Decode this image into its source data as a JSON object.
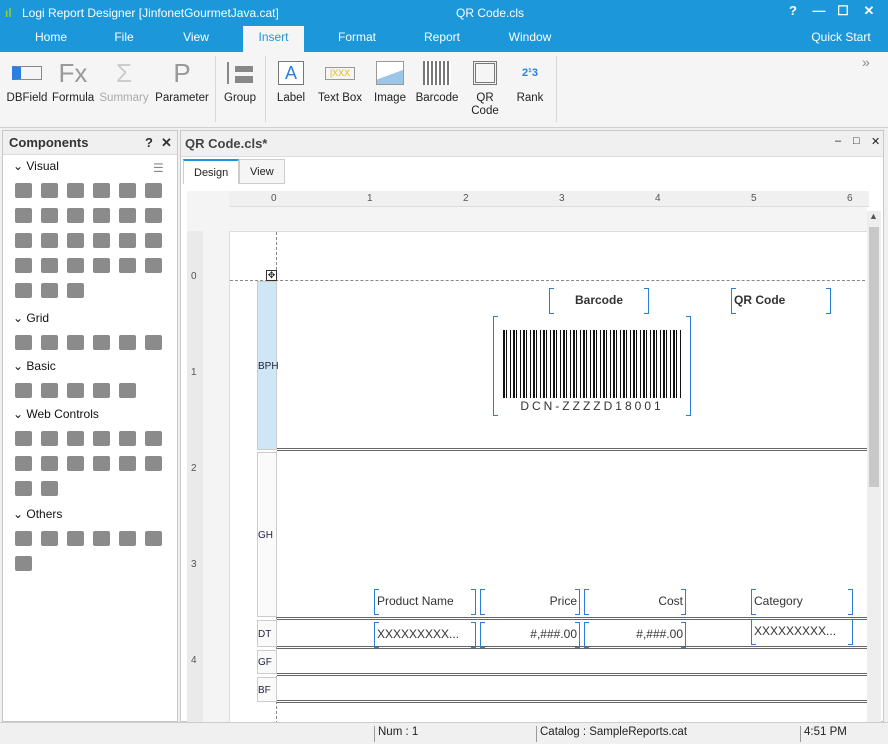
{
  "window": {
    "app_title": "Logi Report Designer [JinfonetGourmetJava.cat]",
    "doc_title": "QR Code.cls",
    "help": "?",
    "minimize": "—",
    "maximize": "☐",
    "close": "✕"
  },
  "menu_tabs": [
    "Home",
    "File",
    "View",
    "Insert",
    "Format",
    "Report",
    "Window"
  ],
  "active_tab": "Insert",
  "quick_start": "Quick Start",
  "ribbon": {
    "items": [
      {
        "label": "DBField",
        "icon": "dbfield-icon"
      },
      {
        "label": "Formula",
        "icon": "formula-icon"
      },
      {
        "label": "Summary",
        "icon": "summary-icon",
        "disabled": true
      },
      {
        "label": "Parameter",
        "icon": "parameter-icon"
      },
      {
        "label": "Group",
        "icon": "group-icon"
      },
      {
        "label": "Label",
        "icon": "label-icon"
      },
      {
        "label": "Text Box",
        "icon": "textbox-icon"
      },
      {
        "label": "Image",
        "icon": "image-icon"
      },
      {
        "label": "Barcode",
        "icon": "barcode-icon"
      },
      {
        "label": "QR Code",
        "icon": "qrcode-icon"
      },
      {
        "label": "Rank",
        "icon": "rank-icon"
      }
    ],
    "expand": "»"
  },
  "components": {
    "title": "Components",
    "help": "?",
    "close": "✕",
    "sections": [
      {
        "label": "Visual",
        "count": 27
      },
      {
        "label": "Grid",
        "count": 6
      },
      {
        "label": "Basic",
        "count": 5
      },
      {
        "label": "Web Controls",
        "count": 14
      },
      {
        "label": "Others",
        "count": 7
      }
    ]
  },
  "document": {
    "title": "QR Code.cls*",
    "tabs": [
      "Design",
      "View"
    ],
    "active_tab": "Design",
    "ruler": [
      "0",
      "1",
      "2",
      "3",
      "4",
      "5",
      "6"
    ],
    "vruler": [
      "0",
      "1",
      "2",
      "3",
      "4"
    ],
    "bands": [
      "BPH",
      "GH",
      "DT",
      "GF",
      "BF"
    ],
    "header_labels": {
      "barcode": "Barcode",
      "qrcode": "QR Code"
    },
    "barcode_text": "DCN-ZZZZD18001",
    "columns": [
      "Product Name",
      "Price",
      "Cost",
      "Category"
    ],
    "detail": [
      "XXXXXXXXX...",
      "#,###.00",
      "#,###.00",
      "XXXXXXXXX..."
    ]
  },
  "status": {
    "num": "Num : 1",
    "catalog": "Catalog : SampleReports.cat",
    "time": "4:51 PM"
  },
  "colors": {
    "accent": "#1b97da",
    "selection": "#2a7fd4"
  }
}
